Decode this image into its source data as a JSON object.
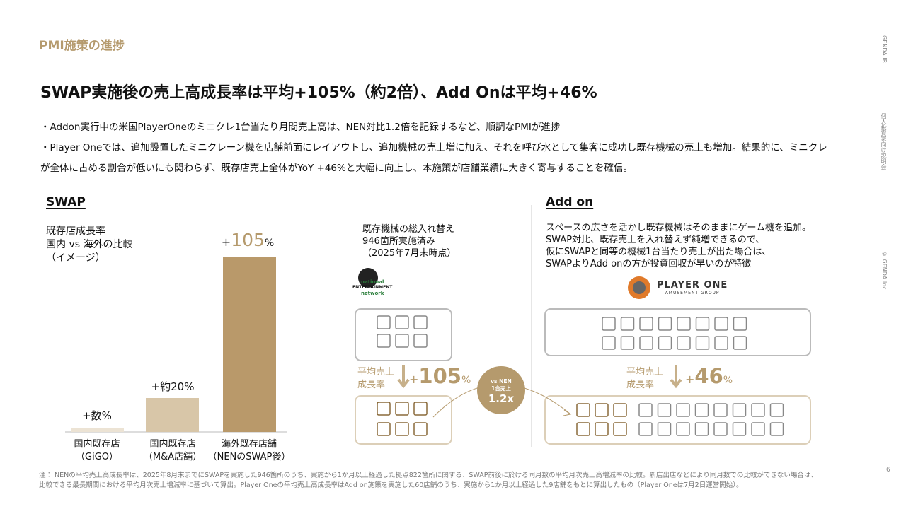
{
  "header": {
    "section": "PMI施策の進捗",
    "title": "SWAP実施後の売上高成長率は平均+105%（約2倍）、Add Onは平均+46%"
  },
  "bullets": [
    "・Addon実行中の米国PlayerOneのミニクレ1台当たり月間売上高は、NEN対比1.2倍を記録するなど、順調なPMIが進捗",
    "・Player Oneでは、追加設置したミニクレーン機を店舗前面にレイアウトし、追加機械の売上増に加え、それを呼び水として集客に成功し既存機械の売上も増加。結果的に、ミニクレが全体に占める割合が低いにも関わらず、既存店売上全体がYoY +46%と大幅に向上し、本施策が店舗業績に大きく寄与することを確信。"
  ],
  "side": {
    "brand": "GENDA IR",
    "event": "個人投資家向け説明会",
    "copyright": "© GENDA Inc."
  },
  "swap": {
    "heading": "SWAP",
    "caption": [
      "既存店成長率",
      "国内 vs 海外の比較",
      "（イメージ）"
    ],
    "bars": [
      {
        "label": "+数%",
        "category": [
          "国内既存店",
          "（GiGO）"
        ]
      },
      {
        "label": "+約20%",
        "category": [
          "国内既存店",
          "（M&A店舗）"
        ]
      },
      {
        "sign": "+",
        "number": "105",
        "unit": "%",
        "category": [
          "海外既存店舗",
          "（NENのSWAP後）"
        ]
      }
    ]
  },
  "middle": {
    "note": [
      "既存機械の総入れ替え",
      "946箇所実施済み",
      "（2025年7月末時点）"
    ],
    "logo": [
      "national",
      "ENTERTAINMENT",
      "network"
    ],
    "rate_label": [
      "平均売上",
      "成長率"
    ],
    "rate": {
      "sign": "+",
      "number": "105",
      "unit": "%"
    },
    "badge": [
      "vs NEN",
      "1台売上",
      "1.2x"
    ]
  },
  "addon": {
    "heading": "Add on",
    "note": [
      "スペースの広さを活かし既存機械はそのままにゲーム機を追加。",
      "SWAP対比、既存売上を入れ替えず純増できるので、",
      "仮にSWAPと同等の機械1台当たり売上が出た場合は、",
      "SWAPよりAdd onの方が投資回収が早いのが特徴"
    ],
    "logo": [
      "PLAYER ONE",
      "AMUSEMENT GROUP"
    ],
    "rate_label": [
      "平均売上",
      "成長率"
    ],
    "rate": {
      "sign": "+",
      "number": "46",
      "unit": "%"
    }
  },
  "footnote": [
    "注： NENの平均売上高成長率は、2025年8月末までにSWAPを実施した946箇所のうち、実施から1か月以上経過した拠点822箇所に関する、SWAP前後に於ける同月数の平均月次売上高増減率の比較。新店出店などにより同月数での比較ができない場合は、",
    "比較できる最長期間における平均月次売上増減率に基づいて算出。Player Oneの平均売上高成長率はAdd on施策を実施した60店舗のうち、実施から1か月以上経過した9店舗をもとに算出したもの（Player Oneは7月2日運営開始）。"
  ],
  "page": "6"
}
